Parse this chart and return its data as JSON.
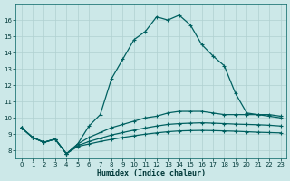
{
  "title": "",
  "xlabel": "Humidex (Indice chaleur)",
  "bg_color": "#cce8e8",
  "line_color": "#006060",
  "grid_color": "#b0d0d0",
  "xlim": [
    -0.5,
    23.5
  ],
  "ylim": [
    7.5,
    17.0
  ],
  "xticks": [
    0,
    1,
    2,
    3,
    4,
    5,
    6,
    7,
    8,
    9,
    10,
    11,
    12,
    13,
    14,
    15,
    16,
    17,
    18,
    19,
    20,
    21,
    22,
    23
  ],
  "yticks": [
    8,
    9,
    10,
    11,
    12,
    13,
    14,
    15,
    16
  ],
  "line1_x": [
    0,
    1,
    2,
    3,
    4,
    5,
    6,
    7,
    8,
    9,
    10,
    11,
    12,
    13,
    14,
    15,
    16,
    17,
    18,
    19,
    20,
    21,
    22,
    23
  ],
  "line1_y": [
    9.4,
    8.8,
    8.5,
    8.7,
    7.8,
    8.4,
    9.5,
    10.2,
    12.4,
    13.6,
    14.8,
    15.3,
    16.2,
    16.0,
    16.3,
    15.7,
    14.5,
    13.8,
    13.2,
    11.5,
    10.3,
    10.2,
    10.1,
    10.0
  ],
  "line2_x": [
    0,
    1,
    2,
    3,
    4,
    5,
    6,
    7,
    8,
    9,
    10,
    11,
    12,
    13,
    14,
    15,
    16,
    17,
    18,
    19,
    20,
    21,
    22,
    23
  ],
  "line2_y": [
    9.4,
    8.8,
    8.5,
    8.7,
    7.8,
    8.4,
    8.8,
    9.1,
    9.4,
    9.6,
    9.8,
    10.0,
    10.1,
    10.3,
    10.4,
    10.4,
    10.4,
    10.3,
    10.2,
    10.2,
    10.2,
    10.2,
    10.2,
    10.1
  ],
  "line3_x": [
    0,
    1,
    2,
    3,
    4,
    5,
    6,
    7,
    8,
    9,
    10,
    11,
    12,
    13,
    14,
    15,
    16,
    17,
    18,
    19,
    20,
    21,
    22,
    23
  ],
  "line3_y": [
    9.4,
    8.8,
    8.5,
    8.7,
    7.8,
    8.3,
    8.55,
    8.75,
    8.95,
    9.1,
    9.25,
    9.38,
    9.5,
    9.6,
    9.65,
    9.68,
    9.7,
    9.68,
    9.65,
    9.62,
    9.6,
    9.58,
    9.55,
    9.5
  ],
  "line4_x": [
    0,
    1,
    2,
    3,
    4,
    5,
    6,
    7,
    8,
    9,
    10,
    11,
    12,
    13,
    14,
    15,
    16,
    17,
    18,
    19,
    20,
    21,
    22,
    23
  ],
  "line4_y": [
    9.4,
    8.8,
    8.5,
    8.7,
    7.8,
    8.25,
    8.4,
    8.55,
    8.68,
    8.8,
    8.9,
    9.0,
    9.08,
    9.15,
    9.2,
    9.22,
    9.23,
    9.22,
    9.2,
    9.18,
    9.15,
    9.12,
    9.1,
    9.08
  ]
}
